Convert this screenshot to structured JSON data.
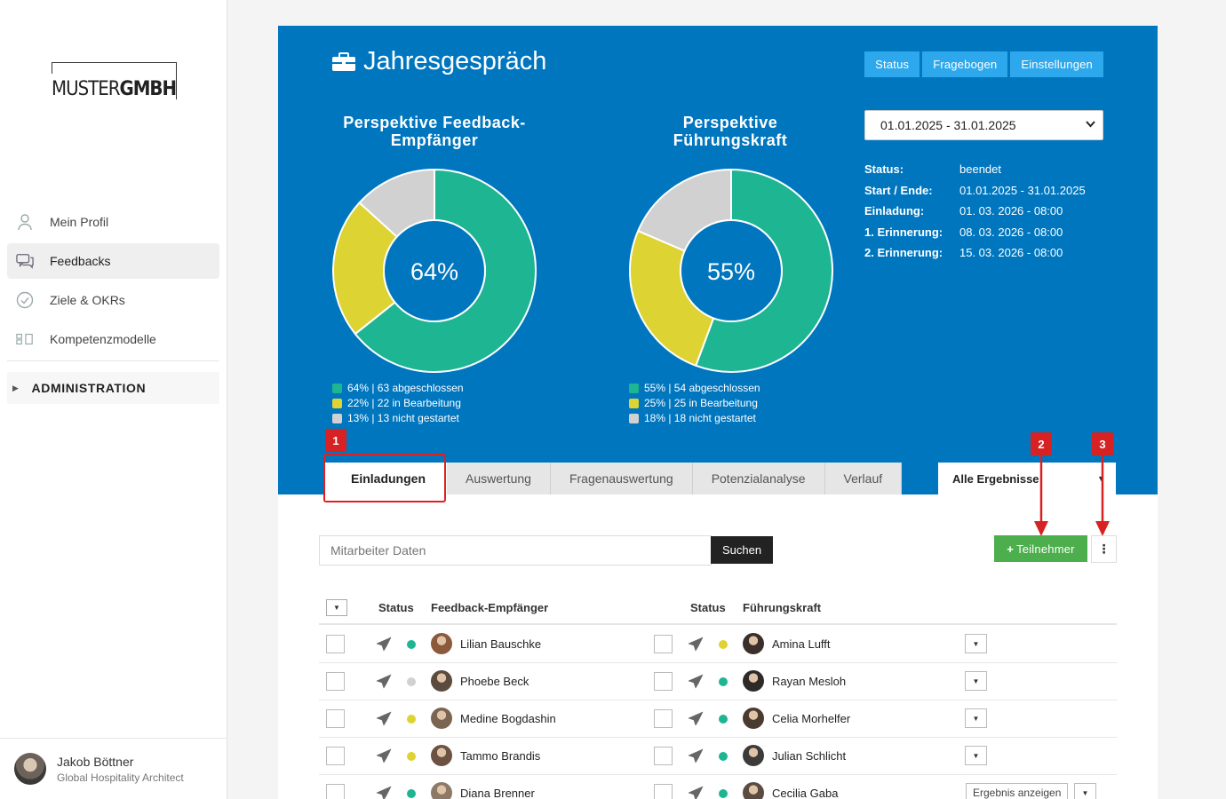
{
  "sidebar": {
    "logo": {
      "part1": "MUSTER",
      "part2": "GMBH"
    },
    "items": [
      {
        "label": "Mein Profil",
        "icon": "user-icon"
      },
      {
        "label": "Feedbacks",
        "icon": "feedback-chat-icon"
      },
      {
        "label": "Ziele & OKRs",
        "icon": "check-circle-icon"
      },
      {
        "label": "Kompetenzmodelle",
        "icon": "competency-model-icon"
      }
    ],
    "admin": "ADMINISTRATION",
    "user": {
      "name": "Jakob Böttner",
      "role": "Global Hospitality Architect"
    }
  },
  "header": {
    "title": "Jahresgespräch",
    "buttons": [
      "Status",
      "Fragebogen",
      "Einstellungen"
    ]
  },
  "charts_text": {
    "left_title_1": "Perspektive Feedback-",
    "left_title_2": "Empfänger",
    "left_center": "64%",
    "right_title_1": "Perspektive",
    "right_title_2": "Führungskraft",
    "right_center": "55%"
  },
  "chart_data": [
    {
      "type": "pie",
      "title": "Perspektive Feedback-Empfänger",
      "center_label": "64%",
      "slices": [
        {
          "label": "64% | 63 abgeschlossen",
          "value": 63,
          "percent": 64,
          "color": "#1db592"
        },
        {
          "label": "22% | 22 in Bearbeitung",
          "value": 22,
          "percent": 22,
          "color": "#ddd333"
        },
        {
          "label": "13% | 13 nicht gestartet",
          "value": 13,
          "percent": 13,
          "color": "#d1d1d1"
        }
      ]
    },
    {
      "type": "pie",
      "title": "Perspektive Führungskraft",
      "center_label": "55%",
      "slices": [
        {
          "label": "55% | 54 abgeschlossen",
          "value": 54,
          "percent": 55,
          "color": "#1db592"
        },
        {
          "label": "25% | 25 in Bearbeitung",
          "value": 25,
          "percent": 25,
          "color": "#ddd333"
        },
        {
          "label": "18% | 18 nicht gestartet",
          "value": 18,
          "percent": 18,
          "color": "#d1d1d1"
        }
      ]
    }
  ],
  "period": {
    "selected": "01.01.2025 - 31.01.2025"
  },
  "info": [
    {
      "key": "Status:",
      "value": "beendet"
    },
    {
      "key": "Start / Ende:",
      "value": "01.01.2025 - 31.01.2025"
    },
    {
      "key": "Einladung:",
      "value": "01. 03. 2026 - 08:00"
    },
    {
      "key": "1. Erinnerung:",
      "value": "08. 03. 2026 - 08:00"
    },
    {
      "key": "2. Erinnerung:",
      "value": "15. 03. 2026 - 08:00"
    }
  ],
  "tabs": [
    "Einladungen",
    "Auswertung",
    "Fragenauswertung",
    "Potenzialanalyse",
    "Verlauf"
  ],
  "filter": {
    "selected": "Alle Ergebnisse"
  },
  "annotations": [
    "1",
    "2",
    "3"
  ],
  "search": {
    "placeholder": "Mitarbeiter Daten",
    "button": "Suchen"
  },
  "actions": {
    "add": "Teilnehmer",
    "more": "⋮"
  },
  "table": {
    "headers": {
      "status": "Status",
      "recipient": "Feedback-Empfänger",
      "status2": "Status",
      "manager": "Führungskraft"
    },
    "rows": [
      {
        "recipient": "Lilian Bauschke",
        "r_status": "green",
        "manager": "Amina Lufft",
        "m_status": "yellow",
        "action": ""
      },
      {
        "recipient": "Phoebe Beck",
        "r_status": "gray",
        "manager": "Rayan Mesloh",
        "m_status": "green",
        "action": ""
      },
      {
        "recipient": "Medine Bogdashin",
        "r_status": "yellow",
        "manager": "Celia Morhelfer",
        "m_status": "green",
        "action": ""
      },
      {
        "recipient": "Tammo Brandis",
        "r_status": "yellow",
        "manager": "Julian Schlicht",
        "m_status": "green",
        "action": ""
      },
      {
        "recipient": "Diana Brenner",
        "r_status": "green",
        "manager": "Cecilia Gaba",
        "m_status": "green",
        "action": "Ergebnis anzeigen"
      }
    ]
  },
  "colors": {
    "primary": "#0076bf",
    "button": "#2da8ec",
    "green": "#1db592",
    "yellow": "#ddd333",
    "gray": "#d1d1d1",
    "add": "#4cae4c",
    "annotation": "#d62222"
  }
}
